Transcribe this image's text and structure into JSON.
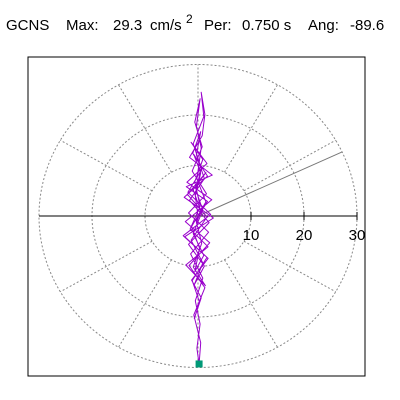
{
  "header": {
    "station": "GCNS",
    "max_label": "Max:",
    "max_value": "29.3",
    "max_units": "cm/s",
    "max_units_exp": "2",
    "per_label": "Per:",
    "per_value": "0.750 s",
    "ang_label": "Ang:",
    "ang_value": "-89.6"
  },
  "chart_data": {
    "type": "polar-line",
    "rings": [
      10,
      20,
      30
    ],
    "ring_labels": [
      "10",
      "20",
      "30"
    ],
    "spoke_step_deg": 30,
    "grid": true,
    "axis_color": "#000000",
    "grid_color": "#888888",
    "trace_color": "#9900cc",
    "marker_color": "#009977",
    "peak_angle_deg": -89.6,
    "peak_value": 29.3,
    "ref_line_angle_deg": 25,
    "ref_line_length": 30,
    "trace": [
      [
        0.0,
        0.0
      ],
      [
        -0.5,
        4.0
      ],
      [
        0.5,
        8.5
      ],
      [
        -0.8,
        12.2
      ],
      [
        0.7,
        9.8
      ],
      [
        -0.4,
        5.1
      ],
      [
        0.9,
        1.2
      ],
      [
        -0.9,
        -3.5
      ],
      [
        1.1,
        -7.8
      ],
      [
        -0.6,
        -11.0
      ],
      [
        0.3,
        -6.4
      ],
      [
        -1.2,
        -2.1
      ],
      [
        1.5,
        2.8
      ],
      [
        -0.2,
        7.3
      ],
      [
        0.6,
        13.5
      ],
      [
        -0.3,
        17.8
      ],
      [
        0.4,
        23.2
      ],
      [
        -0.6,
        18.6
      ],
      [
        0.8,
        13.7
      ],
      [
        -1.1,
        8.9
      ],
      [
        1.6,
        4.4
      ],
      [
        -1.8,
        0.6
      ],
      [
        2.0,
        -3.2
      ],
      [
        -1.4,
        -7.5
      ],
      [
        0.9,
        -12.3
      ],
      [
        -0.5,
        -16.8
      ],
      [
        0.4,
        -21.4
      ],
      [
        -0.2,
        -26.2
      ],
      [
        0.2,
        -29.3
      ],
      [
        0.5,
        -25.1
      ],
      [
        -0.8,
        -19.6
      ],
      [
        1.3,
        -14.2
      ],
      [
        -1.7,
        -9.8
      ],
      [
        2.2,
        -5.3
      ],
      [
        -2.4,
        -1.1
      ],
      [
        2.6,
        3.2
      ],
      [
        -2.1,
        6.7
      ],
      [
        1.7,
        10.4
      ],
      [
        -1.3,
        14.6
      ],
      [
        0.9,
        11.2
      ],
      [
        -0.6,
        6.8
      ],
      [
        0.4,
        1.9
      ],
      [
        -1.5,
        -2.6
      ],
      [
        1.9,
        -6.1
      ],
      [
        -2.3,
        -9.7
      ],
      [
        1.4,
        -13.8
      ],
      [
        -0.9,
        -10.1
      ],
      [
        0.7,
        -5.4
      ],
      [
        -0.4,
        -0.8
      ],
      [
        1.8,
        2.9
      ],
      [
        -2.2,
        5.8
      ],
      [
        2.7,
        8.1
      ],
      [
        -1.6,
        11.6
      ],
      [
        0.8,
        15.9
      ],
      [
        1.3,
        20.1
      ],
      [
        0.6,
        24.5
      ],
      [
        1.1,
        19.7
      ],
      [
        -0.9,
        14.3
      ],
      [
        0.7,
        9.2
      ],
      [
        -1.9,
        4.7
      ],
      [
        2.4,
        0.3
      ],
      [
        -2.8,
        -3.9
      ],
      [
        1.9,
        -8.4
      ],
      [
        -1.2,
        -12.7
      ],
      [
        0.6,
        -16.2
      ],
      [
        -0.7,
        -20.3
      ],
      [
        0.3,
        -17.1
      ],
      [
        -1.1,
        -12.8
      ],
      [
        1.7,
        -8.2
      ],
      [
        -2.5,
        -4.1
      ],
      [
        2.9,
        -0.4
      ],
      [
        -2.6,
        3.7
      ],
      [
        1.8,
        7.9
      ],
      [
        -1.0,
        12.4
      ],
      [
        0.5,
        16.7
      ],
      [
        -0.3,
        12.1
      ],
      [
        1.2,
        7.4
      ],
      [
        -1.6,
        3.1
      ],
      [
        2.1,
        -1.3
      ],
      [
        -1.8,
        -5.6
      ],
      [
        1.2,
        -9.9
      ],
      [
        -0.7,
        -13.6
      ],
      [
        0.9,
        -9.3
      ],
      [
        -1.3,
        -4.8
      ],
      [
        1.7,
        -0.2
      ],
      [
        -2.0,
        4.3
      ],
      [
        1.5,
        8.6
      ],
      [
        -0.9,
        5.2
      ],
      [
        0.5,
        1.0
      ],
      [
        -0.3,
        -1.4
      ],
      [
        0.0,
        0.0
      ]
    ]
  }
}
